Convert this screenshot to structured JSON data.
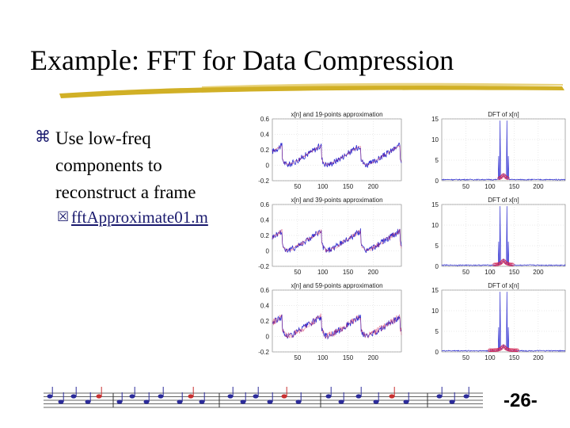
{
  "slide": {
    "title": "Example: FFT for Data Compression",
    "bullet1": {
      "icon": "z-bullet-icon",
      "lines": [
        "Use low-freq",
        "components to",
        "reconstruct a frame"
      ]
    },
    "bullet2": {
      "icon": "y-bullet-icon",
      "text": "fftApproximate01.m"
    },
    "page_number": "-26-"
  },
  "chart_data": [
    {
      "type": "line",
      "title": "x[n] and 19-points approximation",
      "xticks": [
        "50",
        "100",
        "150",
        "200"
      ],
      "yticks": [
        "0.6",
        "0.4",
        "0.2",
        "0",
        "-0.2"
      ],
      "xlim": [
        0,
        256
      ],
      "ylim": [
        -0.2,
        0.6
      ]
    },
    {
      "type": "line",
      "title": "x[n] and 39-points approximation",
      "xticks": [
        "50",
        "100",
        "150",
        "200"
      ],
      "yticks": [
        "0.6",
        "0.4",
        "0.2",
        "0",
        "-0.2"
      ],
      "xlim": [
        0,
        256
      ],
      "ylim": [
        -0.2,
        0.6
      ]
    },
    {
      "type": "line",
      "title": "x[n] and 59-points approximation",
      "xticks": [
        "50",
        "100",
        "150",
        "200"
      ],
      "yticks": [
        "0.6",
        "0.4",
        "0.2",
        "0",
        "-0.2"
      ],
      "xlim": [
        0,
        256
      ],
      "ylim": [
        -0.2,
        0.6
      ]
    },
    {
      "type": "line",
      "title": "DFT of x[n]",
      "xticks": [
        "50",
        "100",
        "150",
        "200"
      ],
      "yticks": [
        "15",
        "10",
        "5",
        "0"
      ],
      "xlim": [
        0,
        256
      ],
      "ylim": [
        0,
        15
      ]
    },
    {
      "type": "line",
      "title": "DFT of x[n]",
      "xticks": [
        "50",
        "100",
        "150",
        "200"
      ],
      "yticks": [
        "15",
        "10",
        "5",
        "0"
      ],
      "xlim": [
        0,
        256
      ],
      "ylim": [
        0,
        15
      ]
    },
    {
      "type": "line",
      "title": "DFT of x[n]",
      "xticks": [
        "50",
        "100",
        "150",
        "200"
      ],
      "yticks": [
        "15",
        "10",
        "5",
        "0"
      ],
      "xlim": [
        0,
        256
      ],
      "ylim": [
        0,
        15
      ]
    }
  ],
  "colors": {
    "signal": "#2b2bd0",
    "approximation": "#d02b5a",
    "title_brush": "#c9a200",
    "link": "#1a1a6e"
  }
}
